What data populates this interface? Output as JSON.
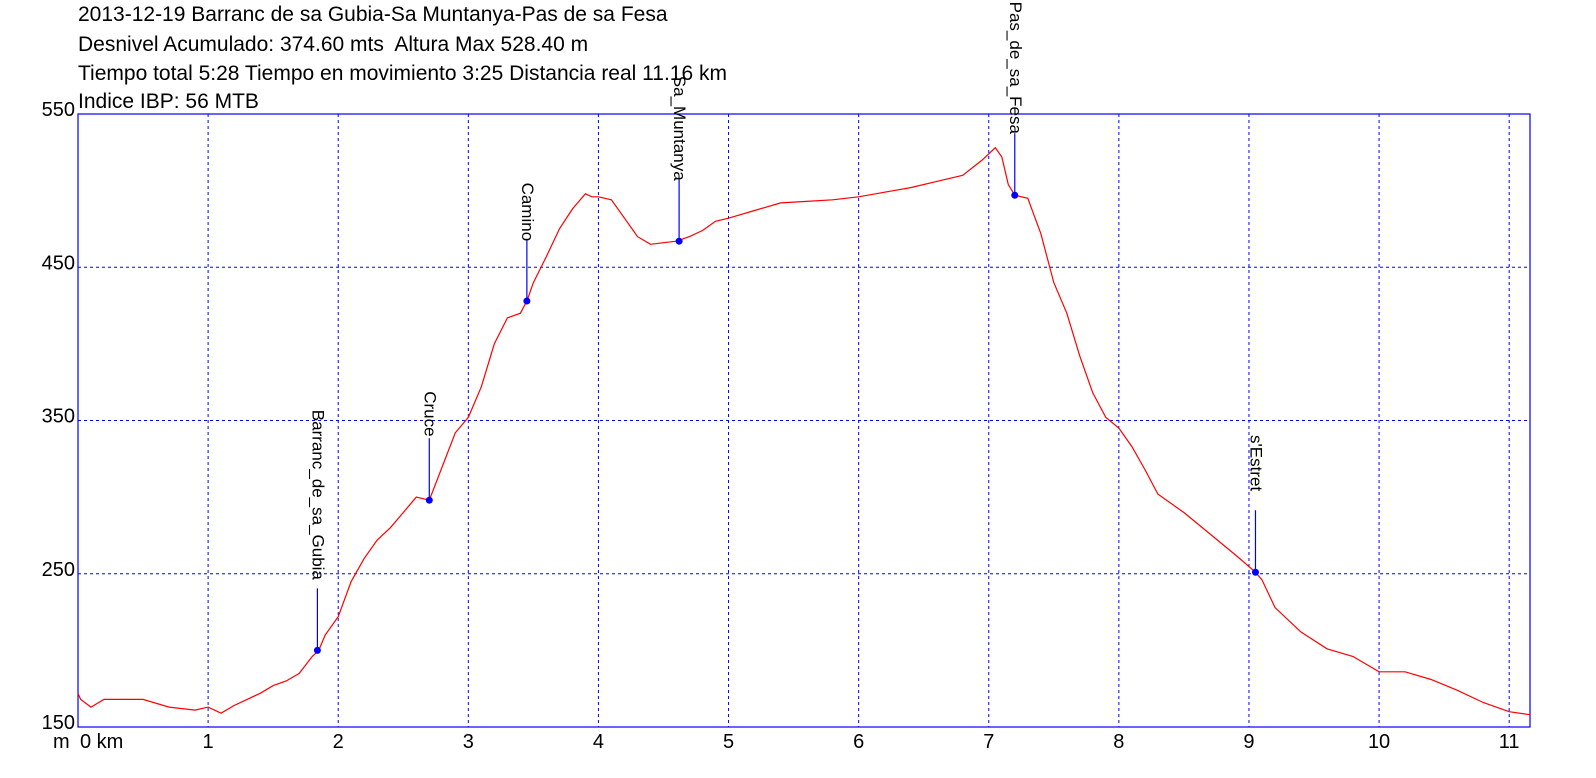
{
  "header": {
    "line1": "2013-12-19 Barranc de sa Gubia-Sa Muntanya-Pas de sa Fesa",
    "line2": "Desnivel Acumulado: 374.60 mts  Altura Max 528.40 m",
    "line3": "Tiempo total 5:28 Tiempo en movimiento 3:25 Distancia real 11.16 km",
    "line4": "Indice IBP: 56 MTB"
  },
  "chart_data": {
    "type": "line",
    "title": "2013-12-19 Barranc de sa Gubia-Sa Muntanya-Pas de sa Fesa",
    "xlabel": "km",
    "ylabel": "m",
    "x_unit_label": "m",
    "xlim": [
      0,
      11.16
    ],
    "ylim": [
      150,
      550
    ],
    "x_ticks": [
      0,
      1,
      2,
      3,
      4,
      5,
      6,
      7,
      8,
      9,
      10,
      11
    ],
    "x_tick_labels": [
      "0 km",
      "1",
      "2",
      "3",
      "4",
      "5",
      "6",
      "7",
      "8",
      "9",
      "10",
      "11"
    ],
    "y_ticks": [
      150,
      250,
      350,
      450,
      550
    ],
    "y_tick_labels": [
      "150",
      "250",
      "350",
      "450",
      "550"
    ],
    "grid": true,
    "colors": {
      "line": "#ff0000",
      "grid": "#0000ff",
      "frame": "#0000ff",
      "waypoint": "#0000ff"
    },
    "series": [
      {
        "x": [
          0,
          0.02,
          0.1,
          0.2,
          0.3,
          0.5,
          0.7,
          0.9,
          1.0,
          1.1,
          1.2,
          1.3,
          1.4,
          1.5,
          1.6,
          1.7,
          1.8,
          1.85,
          1.9,
          2.0,
          2.1,
          2.2,
          2.3,
          2.4,
          2.5,
          2.6,
          2.7,
          2.8,
          2.9,
          3.0,
          3.1,
          3.2,
          3.3,
          3.4,
          3.45,
          3.5,
          3.6,
          3.7,
          3.8,
          3.9,
          3.95,
          4.0,
          4.1,
          4.2,
          4.3,
          4.4,
          4.5,
          4.6,
          4.7,
          4.8,
          4.9,
          5.0,
          5.2,
          5.4,
          5.6,
          5.8,
          6.0,
          6.2,
          6.4,
          6.6,
          6.8,
          6.95,
          7.05,
          7.1,
          7.15,
          7.2,
          7.3,
          7.4,
          7.5,
          7.6,
          7.7,
          7.8,
          7.9,
          8.0,
          8.1,
          8.2,
          8.3,
          8.5,
          8.7,
          8.9,
          9.05,
          9.1,
          9.2,
          9.4,
          9.6,
          9.8,
          10.0,
          10.2,
          10.4,
          10.6,
          10.8,
          11.0,
          11.16
        ],
        "y": [
          172,
          168,
          163,
          168,
          168,
          168,
          163,
          161,
          163,
          159,
          164,
          168,
          172,
          177,
          180,
          185,
          196,
          200,
          210,
          222,
          245,
          260,
          272,
          280,
          290,
          300,
          298,
          320,
          342,
          352,
          372,
          400,
          417,
          420,
          428,
          440,
          457,
          475,
          488,
          498,
          496,
          496,
          494,
          482,
          470,
          465,
          466,
          467,
          470,
          474,
          480,
          482,
          487,
          492,
          493,
          494,
          496,
          499,
          502,
          506,
          510,
          520,
          528,
          522,
          504,
          497,
          495,
          472,
          440,
          420,
          392,
          368,
          352,
          345,
          333,
          318,
          302,
          290,
          276,
          262,
          251,
          246,
          228,
          212,
          201,
          196,
          186,
          186,
          181,
          174,
          166,
          160,
          158
        ]
      }
    ],
    "waypoints": [
      {
        "name": "Barranc_de_sa_Gubia",
        "x": 1.84,
        "y": 200
      },
      {
        "name": "Cruce",
        "x": 2.7,
        "y": 298
      },
      {
        "name": "Camino",
        "x": 3.45,
        "y": 428
      },
      {
        "name": "Sa_Muntanya",
        "x": 4.62,
        "y": 467
      },
      {
        "name": "Pas_de_sa_Fesa",
        "x": 7.2,
        "y": 497
      },
      {
        "name": "s'Estret",
        "x": 9.05,
        "y": 251
      }
    ]
  }
}
